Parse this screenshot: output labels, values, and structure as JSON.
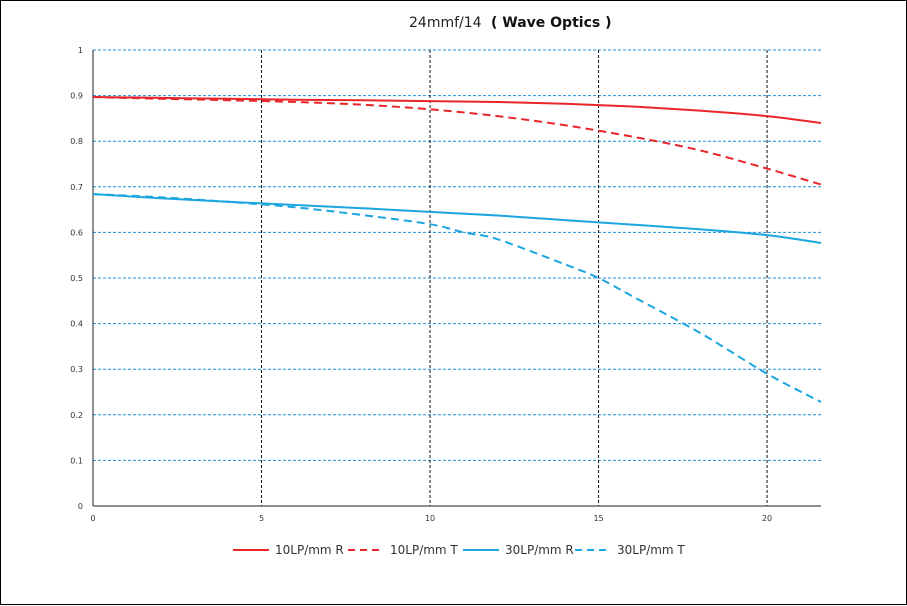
{
  "chart_data": {
    "type": "line",
    "title_main": "24mmf/14",
    "title_sub": "( Wave Optics )",
    "xlabel": "",
    "ylabel": "",
    "xlim": [
      0,
      21.6
    ],
    "ylim": [
      0,
      1
    ],
    "x_ticks": [
      0,
      5,
      10,
      15,
      20
    ],
    "y_ticks": [
      0,
      0.1,
      0.2,
      0.3,
      0.4,
      0.5,
      0.6,
      0.7,
      0.8,
      0.9,
      1
    ],
    "x_tick_labels": [
      "0",
      "5",
      "10",
      "15",
      "20"
    ],
    "y_tick_labels": [
      "0",
      "0.1",
      "0.2",
      "0.3",
      "0.4",
      "0.5",
      "0.6",
      "0.7",
      "0.8",
      "0.9",
      "1"
    ],
    "grid": {
      "vertical": true,
      "horizontal": true
    },
    "legend_position": "bottom",
    "series": [
      {
        "name": "10LP/mm R",
        "color": "#e8262a",
        "dash": false,
        "x": [
          0,
          2,
          4,
          6,
          8,
          10,
          12,
          14,
          16,
          18,
          20,
          21.6
        ],
        "y": [
          0.897,
          0.895,
          0.893,
          0.891,
          0.89,
          0.888,
          0.886,
          0.882,
          0.876,
          0.867,
          0.855,
          0.84
        ]
      },
      {
        "name": "10LP/mm T",
        "color": "#e8262a",
        "dash": true,
        "x": [
          0,
          2,
          4,
          6,
          8,
          10,
          12,
          14,
          16,
          18,
          20,
          21.6
        ],
        "y": [
          0.897,
          0.893,
          0.89,
          0.886,
          0.88,
          0.87,
          0.855,
          0.835,
          0.81,
          0.78,
          0.74,
          0.705
        ]
      },
      {
        "name": "30LP/mm R",
        "color": "#1ca6e0",
        "dash": false,
        "x": [
          0,
          2,
          4,
          6,
          8,
          10,
          12,
          14,
          16,
          18,
          20,
          21.6
        ],
        "y": [
          0.684,
          0.675,
          0.667,
          0.66,
          0.653,
          0.645,
          0.637,
          0.627,
          0.617,
          0.607,
          0.594,
          0.577
        ]
      },
      {
        "name": "30LP/mm T",
        "color": "#1ca6e0",
        "dash": true,
        "x": [
          0,
          2,
          4,
          6,
          8,
          10,
          11,
          12,
          14,
          15,
          16,
          18,
          20,
          21.6
        ],
        "y": [
          0.684,
          0.677,
          0.667,
          0.655,
          0.638,
          0.618,
          0.6,
          0.585,
          0.53,
          0.5,
          0.46,
          0.38,
          0.29,
          0.228
        ]
      }
    ]
  }
}
